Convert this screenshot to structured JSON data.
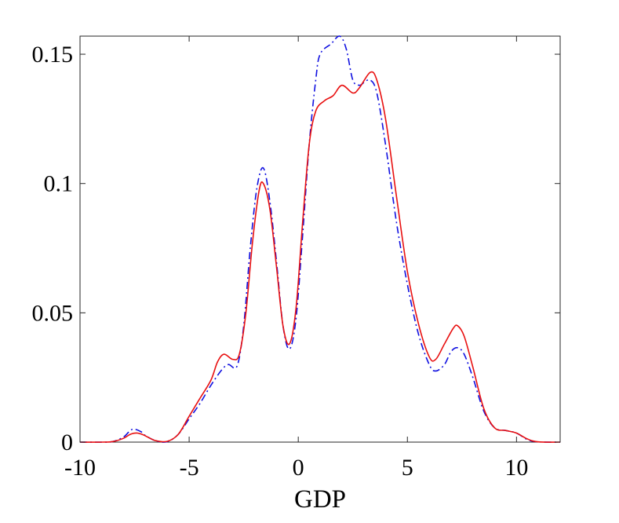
{
  "chart_data": {
    "type": "line",
    "title": "",
    "xlabel": "GDP",
    "ylabel": "",
    "xlim": [
      -10,
      12
    ],
    "ylim": [
      0,
      0.157
    ],
    "grid": false,
    "legend": "none",
    "x_ticks": [
      {
        "value": -10,
        "label": "-10"
      },
      {
        "value": -5,
        "label": "-5"
      },
      {
        "value": 0,
        "label": "0"
      },
      {
        "value": 5,
        "label": "5"
      },
      {
        "value": 10,
        "label": "10"
      }
    ],
    "y_ticks": [
      {
        "value": 0,
        "label": "0"
      },
      {
        "value": 0.05,
        "label": "0.05"
      },
      {
        "value": 0.1,
        "label": "0.1"
      },
      {
        "value": 0.15,
        "label": "0.15"
      }
    ],
    "series": [
      {
        "color": "#1010e0",
        "line_style": "dash-dot",
        "points": [
          [
            -10,
            0
          ],
          [
            -9,
            0
          ],
          [
            -8.5,
            0.0002
          ],
          [
            -8,
            0.002
          ],
          [
            -7.7,
            0.0045
          ],
          [
            -7.5,
            0.005
          ],
          [
            -7.2,
            0.004
          ],
          [
            -7,
            0.0025
          ],
          [
            -6.5,
            0.0004
          ],
          [
            -6,
            0.0002
          ],
          [
            -5.5,
            0.003
          ],
          [
            -5,
            0.009
          ],
          [
            -4.5,
            0.015
          ],
          [
            -4,
            0.022
          ],
          [
            -3.5,
            0.028
          ],
          [
            -3.2,
            0.03
          ],
          [
            -2.8,
            0.0295
          ],
          [
            -2.5,
            0.045
          ],
          [
            -2.2,
            0.075
          ],
          [
            -1.9,
            0.098
          ],
          [
            -1.6,
            0.106
          ],
          [
            -1.3,
            0.093
          ],
          [
            -1,
            0.07
          ],
          [
            -0.7,
            0.045
          ],
          [
            -0.4,
            0.036
          ],
          [
            -0.1,
            0.048
          ],
          [
            0.2,
            0.08
          ],
          [
            0.5,
            0.115
          ],
          [
            0.8,
            0.14
          ],
          [
            1,
            0.15
          ],
          [
            1.5,
            0.154
          ],
          [
            1.9,
            0.157
          ],
          [
            2.2,
            0.152
          ],
          [
            2.5,
            0.14
          ],
          [
            2.8,
            0.138
          ],
          [
            3,
            0.139
          ],
          [
            3.3,
            0.14
          ],
          [
            3.6,
            0.135
          ],
          [
            4,
            0.115
          ],
          [
            4.5,
            0.085
          ],
          [
            5,
            0.061
          ],
          [
            5.5,
            0.042
          ],
          [
            6,
            0.03
          ],
          [
            6.3,
            0.0275
          ],
          [
            6.7,
            0.03
          ],
          [
            7,
            0.035
          ],
          [
            7.3,
            0.0365
          ],
          [
            7.6,
            0.034
          ],
          [
            8,
            0.025
          ],
          [
            8.5,
            0.012
          ],
          [
            9,
            0.0055
          ],
          [
            9.5,
            0.0045
          ],
          [
            10,
            0.0035
          ],
          [
            10.5,
            0.001
          ],
          [
            11,
            0.0001
          ],
          [
            12,
            0
          ]
        ]
      },
      {
        "color": "#e81010",
        "line_style": "solid",
        "points": [
          [
            -10,
            0
          ],
          [
            -9,
            0
          ],
          [
            -8.5,
            0.0002
          ],
          [
            -8,
            0.0015
          ],
          [
            -7.7,
            0.003
          ],
          [
            -7.4,
            0.0035
          ],
          [
            -7.1,
            0.0028
          ],
          [
            -6.8,
            0.0015
          ],
          [
            -6.5,
            0.0005
          ],
          [
            -6,
            0.0003
          ],
          [
            -5.5,
            0.003
          ],
          [
            -5,
            0.01
          ],
          [
            -4.5,
            0.017
          ],
          [
            -4,
            0.024
          ],
          [
            -3.7,
            0.031
          ],
          [
            -3.4,
            0.034
          ],
          [
            -3,
            0.032
          ],
          [
            -2.7,
            0.034
          ],
          [
            -2.4,
            0.05
          ],
          [
            -2.1,
            0.077
          ],
          [
            -1.8,
            0.097
          ],
          [
            -1.6,
            0.1
          ],
          [
            -1.3,
            0.09
          ],
          [
            -1,
            0.068
          ],
          [
            -0.7,
            0.045
          ],
          [
            -0.4,
            0.038
          ],
          [
            -0.1,
            0.052
          ],
          [
            0.2,
            0.085
          ],
          [
            0.5,
            0.115
          ],
          [
            0.8,
            0.128
          ],
          [
            1.2,
            0.132
          ],
          [
            1.6,
            0.134
          ],
          [
            2,
            0.138
          ],
          [
            2.5,
            0.135
          ],
          [
            2.8,
            0.137
          ],
          [
            3.3,
            0.143
          ],
          [
            3.6,
            0.14
          ],
          [
            4,
            0.125
          ],
          [
            4.5,
            0.095
          ],
          [
            5,
            0.066
          ],
          [
            5.5,
            0.046
          ],
          [
            6,
            0.033
          ],
          [
            6.3,
            0.032
          ],
          [
            6.7,
            0.038
          ],
          [
            7.1,
            0.044
          ],
          [
            7.3,
            0.045
          ],
          [
            7.6,
            0.041
          ],
          [
            8,
            0.029
          ],
          [
            8.5,
            0.013
          ],
          [
            9,
            0.0055
          ],
          [
            9.5,
            0.0045
          ],
          [
            10,
            0.0035
          ],
          [
            10.5,
            0.0012
          ],
          [
            11,
            0.0001
          ],
          [
            12,
            0
          ]
        ]
      }
    ]
  }
}
